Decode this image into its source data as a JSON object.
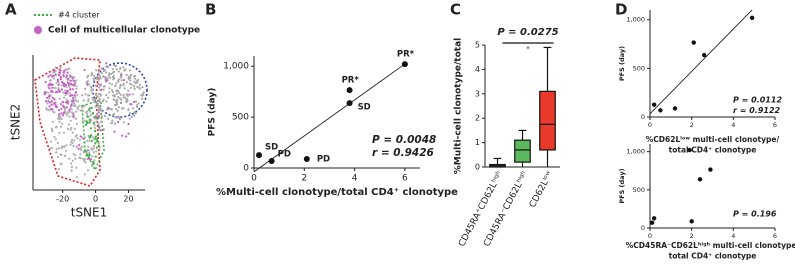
{
  "chart_data": [
    {
      "type": "tsne",
      "panel": "A",
      "xlabel": "tSNE1",
      "ylabel": "tSNE2",
      "xlim": [
        -38,
        30
      ],
      "xticks": [
        -20,
        0,
        20
      ],
      "series": [
        {
          "name": "#4 cluster",
          "color": "#3cb043"
        },
        {
          "name": "Cell of multicellular clonotype",
          "color": "#c661c6"
        }
      ]
    },
    {
      "type": "scatter",
      "panel": "B",
      "xlabel": "%Multi-cell clonotype/total CD4⁺ clonotype",
      "ylabel": "PFS (day)",
      "x": [
        0.2,
        0.7,
        2.1,
        3.8,
        3.8,
        6.0
      ],
      "y": [
        127,
        69,
        88,
        765,
        637,
        1020
      ],
      "point_labels": [
        "SD",
        "PD",
        "PD",
        "PR*",
        "SD",
        "PR*"
      ],
      "xlim": [
        0,
        6.6
      ],
      "xticks": [
        0,
        2,
        4,
        6
      ],
      "ylim": [
        0,
        1100
      ],
      "yticks": [
        0,
        500,
        {
          "value": 1000,
          "label": "1,000"
        }
      ],
      "annotations": [
        "P = 0.0048",
        "r = 0.9426"
      ],
      "fit_line": true,
      "color": "#111111"
    },
    {
      "type": "box",
      "panel": "C",
      "ylabel": "%Multi-cell clonotype/total",
      "categories": [
        "CD45RA⁺CD62Lʰⁱᵍʰ",
        "CD45RA⁻CD62Lʰⁱᵍʰ",
        "CD62Lˡᵒʷ"
      ],
      "colors": [
        "#8c8c8c",
        "#5cb85c",
        "#e8392b"
      ],
      "min": [
        0,
        0,
        0
      ],
      "q1": [
        0,
        0.2,
        0.7
      ],
      "median": [
        0.05,
        0.7,
        1.75
      ],
      "q3": [
        0.1,
        1.1,
        3.1
      ],
      "max": [
        0.35,
        1.5,
        4.9
      ],
      "ylim": [
        0,
        5
      ],
      "yticks": [
        0,
        1,
        2,
        3,
        4,
        5
      ],
      "annotations": [
        "P = 0.0275"
      ],
      "significance": "*"
    },
    {
      "type": "scatter",
      "panel": "D",
      "xlabel": [
        "%CD62Lˡᵒʷ multi-cell clonotype/",
        "total CD4⁺ clonotype"
      ],
      "ylabel": "PFS (day)",
      "x": [
        0.2,
        0.5,
        1.2,
        2.1,
        2.6,
        4.9
      ],
      "y": [
        127,
        69,
        88,
        765,
        637,
        1020
      ],
      "xlim": [
        0,
        6
      ],
      "xticks": [
        0,
        2,
        4,
        6
      ],
      "ylim": [
        0,
        1100
      ],
      "yticks": [
        0,
        500,
        {
          "value": 1000,
          "label": "1,000"
        }
      ],
      "annotations": [
        "P = 0.0112",
        "r = 0.9122"
      ],
      "fit_line": true,
      "color": "#111111"
    },
    {
      "type": "scatter",
      "xlabel": [
        "%CD45RA⁻CD62Lʰⁱᵍʰ multi-cell clonotype/",
        "total CD4⁺ clonotype"
      ],
      "ylabel": "PFS (day)",
      "x": [
        0.2,
        0.1,
        2.0,
        1.9,
        2.4,
        2.9
      ],
      "y": [
        127,
        69,
        88,
        1020,
        637,
        765
      ],
      "xlim": [
        0,
        6
      ],
      "xticks": [
        0,
        2,
        4,
        6
      ],
      "ylim": [
        0,
        1100
      ],
      "yticks": [
        0,
        500,
        {
          "value": 1000,
          "label": "1,000"
        }
      ],
      "annotations": [
        "P = 0.196"
      ],
      "fit_line": false,
      "color": "#111111"
    }
  ]
}
